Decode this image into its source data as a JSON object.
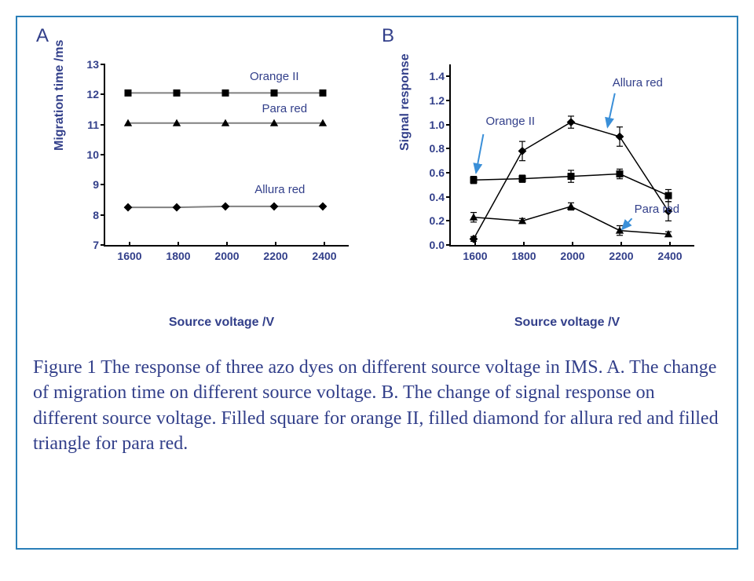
{
  "figure": {
    "border_color": "#2a7fb8",
    "text_color": "#323f8a",
    "arrow_color": "#3a8fd8",
    "panelA": {
      "label": "A",
      "type": "line",
      "xlabel": "Source voltage /V",
      "ylabel": "Migration time /ms",
      "xlim": [
        1500,
        2500
      ],
      "ylim": [
        7,
        13
      ],
      "xticks": [
        1600,
        1800,
        2000,
        2200,
        2400
      ],
      "yticks": [
        7,
        8,
        9,
        10,
        11,
        12,
        13
      ],
      "label_fontsize": 16,
      "tick_fontsize": 14,
      "line_color": "#808080",
      "line_width": 2,
      "marker_size": 9,
      "marker_color": "#000000",
      "series": [
        {
          "name": "Orange II",
          "marker": "square",
          "x": [
            1600,
            1800,
            2000,
            2200,
            2400
          ],
          "y": [
            12.05,
            12.05,
            12.05,
            12.05,
            12.05
          ],
          "label_pos": {
            "x": 2100,
            "y": 12.6
          }
        },
        {
          "name": "Para red",
          "marker": "triangle",
          "x": [
            1600,
            1800,
            2000,
            2200,
            2400
          ],
          "y": [
            11.05,
            11.05,
            11.05,
            11.05,
            11.05
          ],
          "label_pos": {
            "x": 2150,
            "y": 11.55
          }
        },
        {
          "name": "Allura red",
          "marker": "diamond",
          "x": [
            1600,
            1800,
            2000,
            2200,
            2400
          ],
          "y": [
            8.25,
            8.25,
            8.28,
            8.28,
            8.28
          ],
          "label_pos": {
            "x": 2120,
            "y": 8.85
          }
        }
      ]
    },
    "panelB": {
      "label": "B",
      "type": "line",
      "xlabel": "Source voltage /V",
      "ylabel": "Signal response",
      "xlim": [
        1500,
        2500
      ],
      "ylim": [
        0.0,
        1.5
      ],
      "xticks": [
        1600,
        1800,
        2000,
        2200,
        2400
      ],
      "yticks": [
        0.0,
        0.2,
        0.4,
        0.6,
        0.8,
        1.0,
        1.2,
        1.4
      ],
      "label_fontsize": 16,
      "tick_fontsize": 14,
      "line_color": "#000000",
      "line_width": 1.5,
      "marker_size": 9,
      "marker_color": "#000000",
      "error_bar_color": "#000000",
      "series": [
        {
          "name": "Allura red",
          "marker": "diamond",
          "x": [
            1600,
            1800,
            2000,
            2200,
            2400
          ],
          "y": [
            0.05,
            0.78,
            1.02,
            0.9,
            0.28
          ],
          "err": [
            0.02,
            0.08,
            0.05,
            0.08,
            0.08
          ],
          "label_pos": {
            "x": 2170,
            "y": 1.35
          },
          "arrow_from": {
            "x": 2180,
            "y": 1.26
          },
          "arrow_to": {
            "x": 2150,
            "y": 0.98
          }
        },
        {
          "name": "Orange II",
          "marker": "square",
          "x": [
            1600,
            1800,
            2000,
            2200,
            2400
          ],
          "y": [
            0.54,
            0.55,
            0.57,
            0.59,
            0.41
          ],
          "err": [
            0.03,
            0.03,
            0.05,
            0.04,
            0.05
          ],
          "label_pos": {
            "x": 1650,
            "y": 1.03
          },
          "arrow_from": {
            "x": 1640,
            "y": 0.92
          },
          "arrow_to": {
            "x": 1610,
            "y": 0.6
          }
        },
        {
          "name": "Para red",
          "marker": "triangle",
          "x": [
            1600,
            1800,
            2000,
            2200,
            2400
          ],
          "y": [
            0.23,
            0.2,
            0.32,
            0.12,
            0.09
          ],
          "err": [
            0.04,
            0.02,
            0.03,
            0.04,
            0.02
          ],
          "label_pos": {
            "x": 2260,
            "y": 0.3
          },
          "arrow_from": {
            "x": 2250,
            "y": 0.22
          },
          "arrow_to": {
            "x": 2210,
            "y": 0.13
          }
        }
      ]
    },
    "caption": "Figure 1 The response of three azo dyes on different source voltage in IMS. A. The change of migration time on different source voltage. B. The change of signal response on different source voltage. Filled square for orange II, filled diamond for allura red and filled triangle for para red."
  }
}
